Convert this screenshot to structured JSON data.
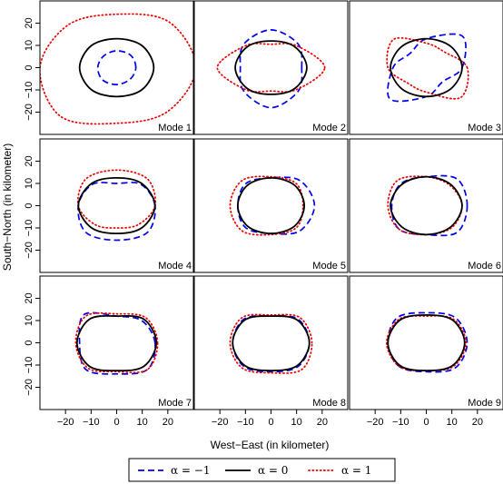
{
  "chart_data": {
    "type": "line",
    "title": "",
    "xlabel": "West−East (in kilometer)",
    "ylabel": "South−North (in kilometer)",
    "xlim": [
      -30,
      30
    ],
    "ylim": [
      -30,
      30
    ],
    "xticks": [
      -20,
      -10,
      0,
      10,
      20
    ],
    "yticks": [
      -20,
      -10,
      0,
      10,
      20
    ],
    "xtick_labels": [
      "−20",
      "−10",
      "0",
      "10",
      "20"
    ],
    "ytick_labels": [
      "−20",
      "−10",
      "0",
      "10",
      "20"
    ],
    "grid": false,
    "legend": {
      "placement": "bottom",
      "entries": [
        "α = −1",
        "α = 0",
        "α = 1"
      ]
    },
    "series_styles": [
      {
        "name": "α = −1",
        "color": "#0000ee",
        "dash": "dashed"
      },
      {
        "name": "α = 0",
        "color": "#000000",
        "dash": "solid"
      },
      {
        "name": "α = 1",
        "color": "#ee0000",
        "dash": "dotted"
      }
    ],
    "panels": [
      {
        "label": "Mode 1",
        "series": [
          {
            "name": "α = −1",
            "radii_km": [
              7.5,
              7.8,
              7.6,
              7.3,
              7.4,
              7.8,
              7.6,
              7.4
            ]
          },
          {
            "name": "α = 0",
            "radii_km": [
              14.5,
              14,
              13,
              14,
              14.5,
              14,
              13,
              14
            ]
          },
          {
            "name": "α = 1",
            "radii_km": [
              31,
              29,
              24,
              27,
              30,
              31,
              25,
              28
            ]
          }
        ]
      },
      {
        "label": "Mode 2",
        "series": [
          {
            "name": "α = −1",
            "radii_km": [
              12,
              15,
              17,
              15,
              12,
              15,
              18,
              15
            ]
          },
          {
            "name": "α = 0",
            "radii_km": [
              14,
              13.2,
              12,
              13.2,
              14,
              13.2,
              12,
              13.2
            ]
          },
          {
            "name": "α = 1",
            "radii_km": [
              21,
              14,
              10.5,
              14,
              21,
              14,
              10.5,
              14
            ]
          }
        ]
      },
      {
        "label": "Mode 3",
        "series": [
          {
            "name": "α = −1",
            "radii_km": [
              14,
              20,
              13,
              9,
              13,
              20,
              13,
              9
            ]
          },
          {
            "name": "α = 0",
            "radii_km": [
              14,
              13.5,
              13,
              13.5,
              14,
              13.5,
              13,
              13.5
            ]
          },
          {
            "name": "α = 1",
            "radii_km": [
              16,
              10,
              11,
              18,
              15,
              10,
              11,
              19
            ]
          }
        ]
      },
      {
        "label": "Mode 4",
        "series": [
          {
            "name": "α = −1",
            "radii_km": [
              15,
              13.5,
              10,
              13.5,
              15,
              17,
              15.5,
              17
            ]
          },
          {
            "name": "α = 0",
            "radii_km": [
              15,
              14,
              12.5,
              14,
              15,
              14,
              12.5,
              14
            ]
          },
          {
            "name": "α = 1",
            "radii_km": [
              15,
              17,
              16,
              17,
              15,
              12,
              10,
              12
            ]
          }
        ]
      },
      {
        "label": "Mode 5",
        "series": [
          {
            "name": "α = −1",
            "radii_km": [
              17,
              16,
              12.5,
              14,
              13,
              14,
              12.5,
              16
            ]
          },
          {
            "name": "α = 0",
            "radii_km": [
              13,
              13,
              12.5,
              13,
              13,
              13,
              12.5,
              13
            ]
          },
          {
            "name": "α = 1",
            "radii_km": [
              12.5,
              14,
              13,
              16,
              16,
              16,
              13,
              14
            ]
          }
        ]
      },
      {
        "label": "Mode 6",
        "series": [
          {
            "name": "α = −1",
            "radii_km": [
              16,
              17,
              13,
              14,
              13.5,
              15,
              13,
              17
            ]
          },
          {
            "name": "α = 0",
            "radii_km": [
              14,
              13.5,
              13,
              13.5,
              14,
              13.5,
              13,
              13.5
            ]
          },
          {
            "name": "α = 1",
            "radii_km": [
              14,
              13,
              13,
              16,
              15,
              15,
              13,
              14
            ]
          }
        ]
      },
      {
        "label": "Mode 7",
        "series": [
          {
            "name": "α = −1",
            "radii_km": [
              15,
              14,
              12,
              18,
              14.5,
              17,
              14,
              17
            ]
          },
          {
            "name": "α = 0",
            "radii_km": [
              15.5,
              15,
              12,
              15,
              15.5,
              15,
              12.5,
              15
            ]
          },
          {
            "name": "α = 1",
            "radii_km": [
              16,
              16,
              13,
              17,
              16,
              16,
              13,
              17
            ]
          }
        ]
      },
      {
        "label": "Mode 8",
        "series": [
          {
            "name": "α = −1",
            "radii_km": [
              15,
              15,
              12,
              15,
              15,
              15,
              13,
              15
            ]
          },
          {
            "name": "α = 0",
            "radii_km": [
              15,
              14.5,
              12,
              14.5,
              15,
              14.5,
              12.5,
              14.5
            ]
          },
          {
            "name": "α = 1",
            "radii_km": [
              16,
              16,
              12.5,
              16,
              16,
              16,
              13.5,
              17
            ]
          }
        ]
      },
      {
        "label": "Mode 9",
        "series": [
          {
            "name": "α = −1",
            "radii_km": [
              16,
              16,
              13.5,
              16,
              15,
              15,
              13,
              16
            ]
          },
          {
            "name": "α = 0",
            "radii_km": [
              15,
              14.5,
              12.5,
              14.5,
              15,
              14.5,
              12.5,
              14.5
            ]
          },
          {
            "name": "α = 1",
            "radii_km": [
              15.5,
              15,
              12,
              15,
              15.5,
              15,
              12.5,
              15
            ]
          }
        ]
      }
    ]
  }
}
